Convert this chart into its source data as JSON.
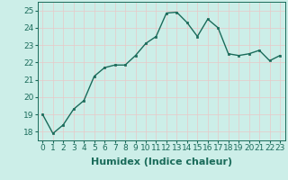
{
  "x": [
    0,
    1,
    2,
    3,
    4,
    5,
    6,
    7,
    8,
    9,
    10,
    11,
    12,
    13,
    14,
    15,
    16,
    17,
    18,
    19,
    20,
    21,
    22,
    23
  ],
  "y": [
    19.0,
    17.9,
    18.4,
    19.3,
    19.8,
    21.2,
    21.7,
    21.85,
    21.85,
    22.4,
    23.1,
    23.5,
    24.85,
    24.9,
    24.3,
    23.5,
    24.5,
    24.0,
    22.5,
    22.4,
    22.5,
    22.7,
    22.1,
    22.4
  ],
  "line_color": "#1a6b5a",
  "marker": "s",
  "marker_size": 2,
  "bg_color": "#cceee8",
  "grid_color": "#c0d8d4",
  "xlabel": "Humidex (Indice chaleur)",
  "ylim": [
    17.5,
    25.5
  ],
  "xlim": [
    -0.5,
    23.5
  ],
  "yticks": [
    18,
    19,
    20,
    21,
    22,
    23,
    24,
    25
  ],
  "xticks": [
    0,
    1,
    2,
    3,
    4,
    5,
    6,
    7,
    8,
    9,
    10,
    11,
    12,
    13,
    14,
    15,
    16,
    17,
    18,
    19,
    20,
    21,
    22,
    23
  ],
  "tick_fontsize": 6.5,
  "xlabel_fontsize": 8,
  "xlabel_fontweight": "bold",
  "tick_color": "#1a6b5a",
  "label_color": "#1a6b5a"
}
